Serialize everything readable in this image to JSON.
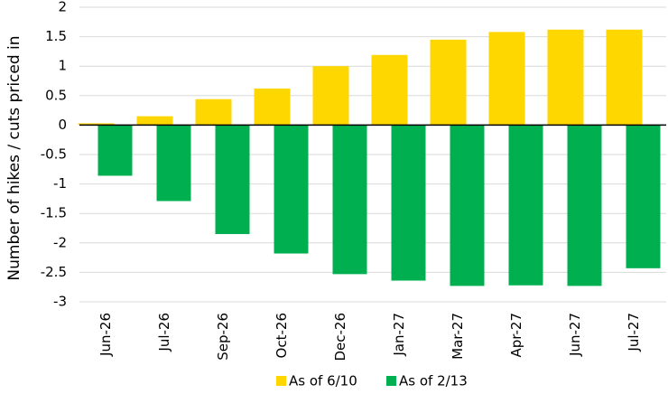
{
  "chart_data": {
    "type": "bar",
    "y_label": "Number of  hikes / cuts priced in",
    "categories": [
      "Jun-26",
      "Jul-26",
      "Sep-26",
      "Oct-26",
      "Dec-26",
      "Jan-27",
      "Mar-27",
      "Apr-27",
      "Jun-27",
      "Jul-27"
    ],
    "series": [
      {
        "name": "As of 6/10",
        "color": "#ffd700",
        "values": [
          0.03,
          0.15,
          0.44,
          0.62,
          1.0,
          1.19,
          1.45,
          1.58,
          1.62,
          1.62
        ]
      },
      {
        "name": "As of 2/13",
        "color": "#00b050",
        "values": [
          -0.86,
          -1.29,
          -1.85,
          -2.18,
          -2.53,
          -2.64,
          -2.73,
          -2.72,
          -2.73,
          -2.43
        ]
      }
    ],
    "ylim": [
      -3,
      2
    ],
    "yticks": [
      -3,
      -2.5,
      -2,
      -1.5,
      -1,
      -0.5,
      0,
      0.5,
      1,
      1.5,
      2
    ],
    "grid": true
  }
}
